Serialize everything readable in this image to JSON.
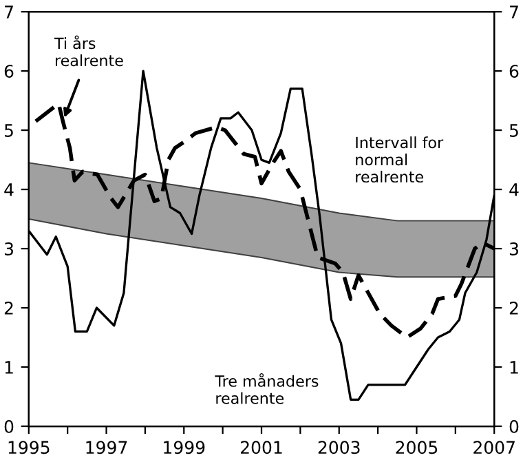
{
  "chart_data": {
    "type": "line",
    "series": [
      {
        "name": "Intervall for normal realrente",
        "x": [
          1995,
          1997,
          1999,
          2001,
          2003,
          2004.5,
          2007
        ],
        "values": [
          null,
          null,
          null,
          null,
          null,
          null,
          null
        ],
        "lower": [
          3.5,
          3.25,
          3.05,
          2.85,
          2.6,
          2.52,
          2.52
        ],
        "upper": [
          4.45,
          4.25,
          4.05,
          3.85,
          3.6,
          3.47,
          3.47
        ]
      },
      {
        "name": "Ti års realrente",
        "line_style": "dashed",
        "color": "#000000",
        "x": [
          1995.18,
          1995.77,
          1995.88,
          1996.06,
          1996.18,
          1996.39,
          1996.77,
          1997.12,
          1997.3,
          1997.71,
          1998.0,
          1998.24,
          1998.42,
          1998.6,
          1998.77,
          1999.0,
          1999.3,
          1999.83,
          2000.06,
          2000.3,
          2000.54,
          2000.83,
          2001.0,
          2001.3,
          2001.5,
          2001.7,
          2002.0,
          2002.45,
          2002.9,
          2003.1,
          2003.3,
          2003.5,
          2004.05,
          2004.35,
          2004.75,
          2005.1,
          2005.4,
          2005.55,
          2006.0,
          2006.15,
          2006.5,
          2006.7,
          2007.0
        ],
        "values": [
          5.15,
          5.45,
          5.15,
          4.7,
          4.15,
          4.3,
          4.25,
          3.85,
          3.7,
          4.15,
          4.25,
          3.8,
          3.85,
          4.5,
          4.7,
          4.8,
          4.95,
          5.05,
          5.0,
          4.8,
          4.6,
          4.55,
          4.1,
          4.45,
          4.65,
          4.3,
          4.0,
          2.85,
          2.75,
          2.6,
          2.15,
          2.55,
          1.9,
          1.7,
          1.5,
          1.65,
          1.9,
          2.15,
          2.2,
          2.4,
          3.0,
          3.1,
          3.0
        ]
      },
      {
        "name": "Tre månaders realrente",
        "line_style": "solid",
        "color": "#000000",
        "x": [
          1995.0,
          1995.47,
          1995.7,
          1996.0,
          1996.2,
          1996.5,
          1996.75,
          1997.2,
          1997.45,
          1997.55,
          1997.95,
          1998.3,
          1998.65,
          1998.9,
          1999.2,
          1999.4,
          1999.7,
          1999.95,
          2000.2,
          2000.4,
          2000.75,
          2001.0,
          2001.2,
          2001.5,
          2001.75,
          2002.05,
          2002.3,
          2002.5,
          2002.8,
          2003.05,
          2003.3,
          2003.5,
          2003.75,
          2004.2,
          2004.7,
          2005.0,
          2005.3,
          2005.55,
          2005.85,
          2006.1,
          2006.25,
          2006.55,
          2006.8,
          2007.0
        ],
        "values": [
          3.3,
          2.9,
          3.2,
          2.7,
          1.6,
          1.6,
          2.0,
          1.7,
          2.25,
          3.0,
          6.0,
          4.7,
          3.7,
          3.6,
          3.25,
          3.9,
          4.7,
          5.2,
          5.2,
          5.3,
          5.0,
          4.5,
          4.45,
          4.95,
          5.7,
          5.7,
          4.55,
          3.55,
          1.8,
          1.4,
          0.45,
          0.45,
          0.7,
          0.7,
          0.7,
          1.0,
          1.3,
          1.5,
          1.6,
          1.8,
          2.25,
          2.6,
          3.15,
          3.9
        ]
      }
    ],
    "xlim": [
      1995,
      2007
    ],
    "xticks": [
      1995,
      {
        "value": 1996,
        "label": null
      },
      1997,
      {
        "value": 1998,
        "label": null
      },
      1999,
      {
        "value": 2000,
        "label": null
      },
      2001,
      {
        "value": 2002,
        "label": null
      },
      2003,
      {
        "value": 2004,
        "label": null
      },
      2005,
      {
        "value": 2006,
        "label": null
      },
      2007
    ],
    "ylim": [
      0,
      7
    ],
    "yticks": [
      0,
      1,
      2,
      3,
      4,
      5,
      6,
      7
    ],
    "y2lim": [
      0,
      7
    ],
    "y2ticks": [
      0,
      1,
      2,
      3,
      4,
      5,
      6,
      7
    ],
    "grid": false,
    "legend": false
  }
}
